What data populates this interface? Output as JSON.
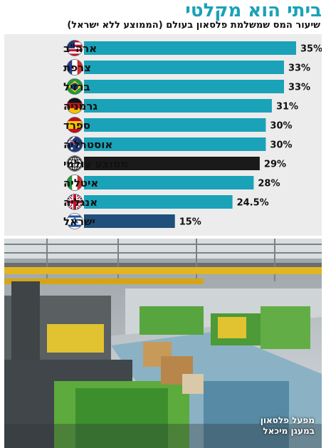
{
  "header": {
    "title": "ביתי הוא מקלטי",
    "subtitle": "שיעור המס שמשלמת פלסאון בעולם (הממוצע ללא ישראל)"
  },
  "photo": {
    "caption_line1": "מפעל פלסאון",
    "caption_line2": "במעגן מיכאל"
  },
  "colors": {
    "bar": "#1aa2b8",
    "average_bar": "#1a1a1a",
    "israel_bar": "#1f4f7a",
    "title": "#1aa2b8",
    "panel_bg": "#ececec"
  },
  "chart_data": {
    "type": "bar",
    "orientation": "horizontal",
    "xlim": [
      0,
      35
    ],
    "grid": false,
    "legend": "none",
    "categories": [
      "ארה\"ב",
      "צרפת",
      "ברזיל",
      "גרמניה",
      "ספרד",
      "אוסטרליה",
      "ממוצע עולמי",
      "איטליה",
      "אנגליה",
      "ישראל"
    ],
    "values": [
      35,
      33,
      33,
      31,
      30,
      30,
      29,
      28,
      24.5,
      15
    ],
    "value_labels": [
      "35%",
      "33%",
      "33%",
      "31%",
      "30%",
      "30%",
      "29%",
      "28%",
      "24.5%",
      "15%"
    ],
    "icons": [
      "flag-us-icon",
      "flag-france-icon",
      "flag-brazil-icon",
      "flag-germany-icon",
      "flag-spain-icon",
      "flag-australia-icon",
      "globe-icon",
      "flag-italy-icon",
      "flag-uk-icon",
      "flag-israel-icon"
    ],
    "bar_kinds": [
      "normal",
      "normal",
      "normal",
      "normal",
      "normal",
      "normal",
      "average",
      "normal",
      "normal",
      "israel"
    ]
  }
}
